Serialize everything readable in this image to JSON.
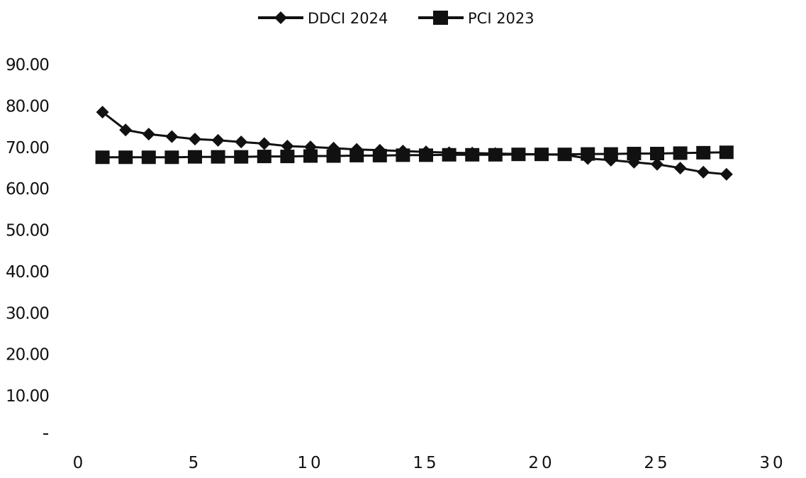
{
  "chart_data": {
    "type": "line",
    "title": "",
    "xlabel": "",
    "ylabel": "",
    "xlim": [
      0,
      30
    ],
    "ylim": [
      0,
      90
    ],
    "x_ticks": [
      "0",
      "5",
      "10",
      "15",
      "20",
      "25",
      "30"
    ],
    "y_ticks": [
      "10.00",
      "20.00",
      "30.00",
      "40.00",
      "50.00",
      "60.00",
      "70.00",
      "80.00",
      "90.00"
    ],
    "grid": false,
    "legend_position": "top-center",
    "x": [
      1,
      2,
      3,
      4,
      5,
      6,
      7,
      8,
      9,
      10,
      11,
      12,
      13,
      14,
      15,
      16,
      17,
      18,
      19,
      20,
      21,
      22,
      23,
      24,
      25,
      26,
      27,
      28
    ],
    "series": [
      {
        "name": "DDCI 2024",
        "marker": "diamond",
        "color": "#111111",
        "values": [
          78.5,
          74.2,
          73.2,
          72.6,
          72.0,
          71.7,
          71.3,
          70.9,
          70.3,
          70.1,
          69.8,
          69.5,
          69.3,
          69.1,
          68.9,
          68.7,
          68.6,
          68.5,
          68.4,
          68.3,
          68.2,
          67.3,
          66.9,
          66.4,
          65.9,
          65.0,
          64.0,
          63.5
        ]
      },
      {
        "name": "PCI 2023",
        "marker": "square",
        "color": "#111111",
        "values": [
          67.6,
          67.6,
          67.6,
          67.6,
          67.7,
          67.7,
          67.7,
          67.8,
          67.8,
          67.9,
          67.9,
          68.0,
          68.0,
          68.1,
          68.1,
          68.2,
          68.2,
          68.2,
          68.3,
          68.3,
          68.3,
          68.4,
          68.4,
          68.5,
          68.5,
          68.6,
          68.7,
          68.8
        ]
      }
    ]
  }
}
